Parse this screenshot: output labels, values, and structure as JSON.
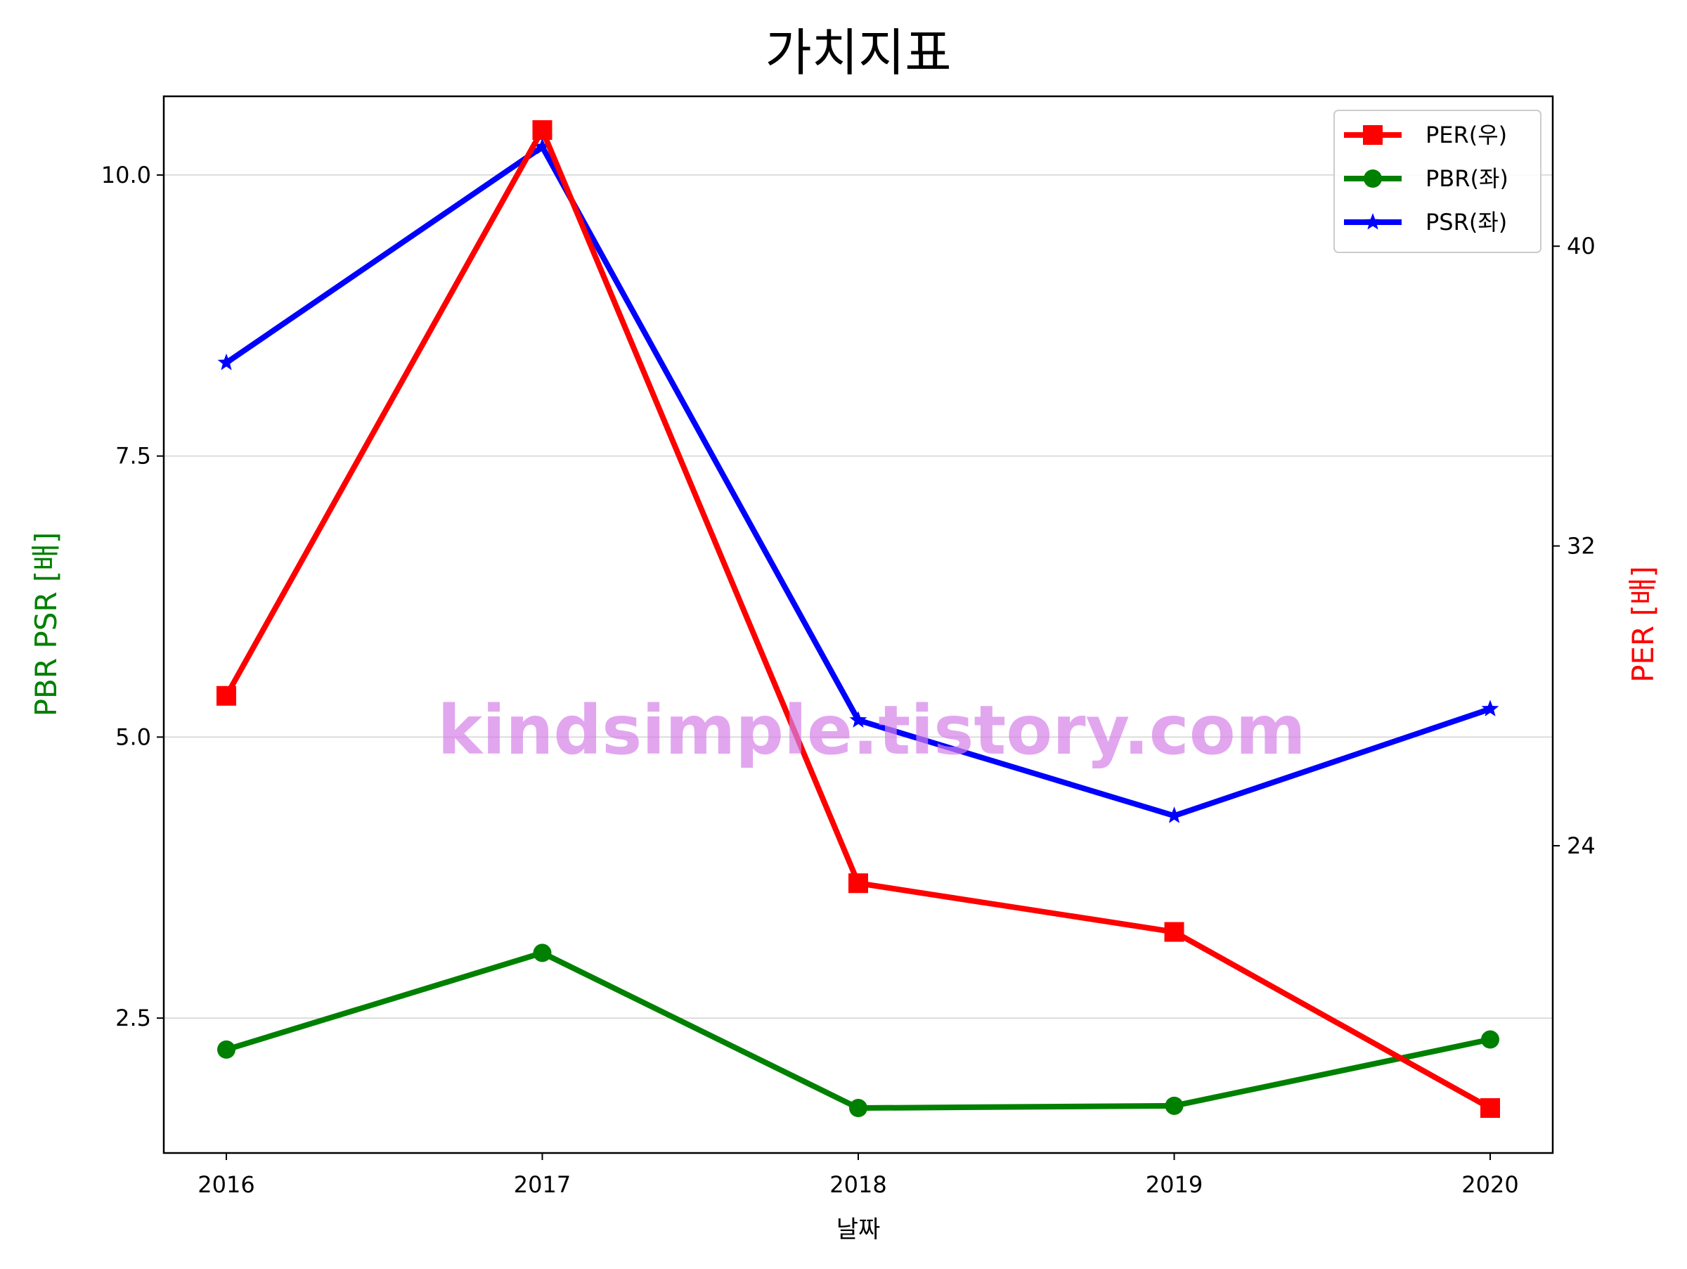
{
  "chart_data": {
    "type": "line",
    "title": "가치지표",
    "xlabel": "날짜",
    "ylabel_left": "PBR PSR [배]",
    "ylabel_right": "PER [배]",
    "ylabel_left_color": "#008000",
    "ylabel_right_color": "#ff0000",
    "categories": [
      "2016",
      "2017",
      "2018",
      "2019",
      "2020"
    ],
    "y_left": {
      "lim": [
        1.3,
        10.7
      ],
      "ticks": [
        2.5,
        5.0,
        7.5,
        10.0
      ],
      "tick_labels": [
        "2.5",
        "5.0",
        "7.5",
        "10.0"
      ]
    },
    "y_right": {
      "lim": [
        15.8,
        44.0
      ],
      "ticks": [
        24,
        32,
        40
      ],
      "tick_labels": [
        "24",
        "32",
        "40"
      ]
    },
    "grid": "horizontal",
    "legend_position": "top-right",
    "series": [
      {
        "name": "PER(우)",
        "axis": "right",
        "color": "#ff0000",
        "marker": "square",
        "values": [
          28.0,
          43.1,
          23.0,
          21.7,
          17.0
        ]
      },
      {
        "name": "PBR(좌)",
        "axis": "left",
        "color": "#008000",
        "marker": "circle",
        "values": [
          2.22,
          3.08,
          1.7,
          1.72,
          2.31
        ]
      },
      {
        "name": "PSR(좌)",
        "axis": "left",
        "color": "#0000ff",
        "marker": "star",
        "values": [
          8.33,
          10.25,
          5.15,
          4.3,
          5.25
        ]
      }
    ]
  },
  "watermark": "kindsimple.tistory.com"
}
